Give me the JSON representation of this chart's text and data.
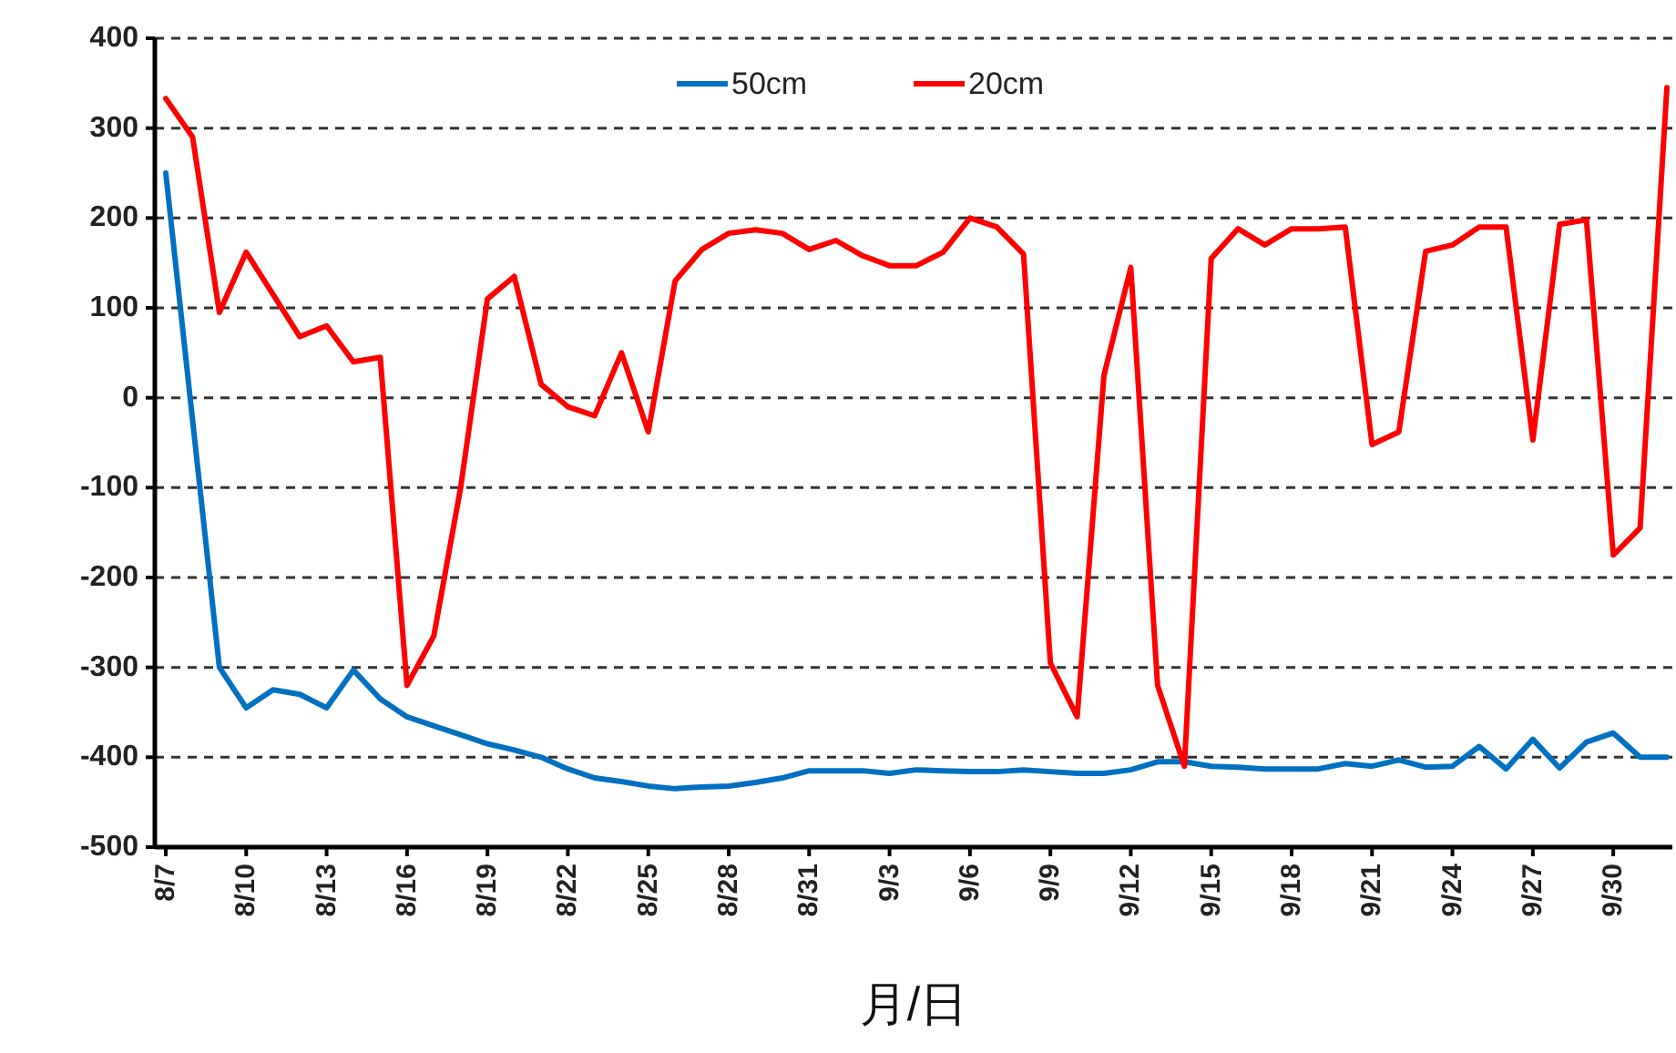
{
  "chart_data": {
    "type": "line",
    "xlabel": "月/日",
    "categories": [
      "8/7",
      null,
      null,
      "8/10",
      null,
      null,
      "8/13",
      null,
      null,
      "8/16",
      null,
      null,
      "8/19",
      null,
      null,
      "8/22",
      null,
      null,
      "8/25",
      null,
      null,
      "8/28",
      null,
      null,
      "8/31",
      null,
      null,
      "9/3",
      null,
      null,
      "9/6",
      null,
      null,
      "9/9",
      null,
      null,
      "9/12",
      null,
      null,
      "9/15",
      null,
      null,
      "9/18",
      null,
      null,
      "9/21",
      null,
      null,
      "9/24",
      null,
      null,
      "9/27",
      null,
      null,
      "9/30",
      null,
      null
    ],
    "series": [
      {
        "name": "50cm",
        "color": "#0070c0",
        "values": [
          250,
          -25,
          -300,
          -345,
          -325,
          -330,
          -345,
          -303,
          -335,
          -355,
          -365,
          -375,
          -385,
          -392,
          -400,
          -413,
          -423,
          -427,
          -432,
          -435,
          -433,
          -432,
          -428,
          -423,
          -415,
          -415,
          -415,
          -418,
          -414,
          -415,
          -416,
          -416,
          -414,
          -416,
          -418,
          -418,
          -414,
          -405,
          -405,
          -410,
          -411,
          -413,
          -413,
          -413,
          -407,
          -410,
          -403,
          -411,
          -410,
          -388,
          -413,
          -380,
          -412,
          -383,
          -373,
          -400,
          -400
        ]
      },
      {
        "name": "20cm",
        "color": "#ff0000",
        "values": [
          333,
          290,
          95,
          162,
          115,
          68,
          80,
          40,
          45,
          -320,
          -265,
          -100,
          110,
          135,
          15,
          -10,
          -20,
          50,
          -38,
          130,
          165,
          183,
          187,
          183,
          165,
          175,
          158,
          147,
          147,
          162,
          200,
          190,
          160,
          -295,
          -355,
          25,
          145,
          -320,
          -410,
          155,
          188,
          170,
          188,
          188,
          190,
          -52,
          -38,
          163,
          170,
          190,
          190,
          -47,
          193,
          198,
          -175,
          -145,
          345
        ]
      }
    ],
    "ylim": [
      -500,
      400
    ],
    "yticks": [
      -500,
      -400,
      -300,
      -200,
      -100,
      0,
      100,
      200,
      300,
      400
    ],
    "grid": "y",
    "legend": "top",
    "line_style": "solid"
  }
}
